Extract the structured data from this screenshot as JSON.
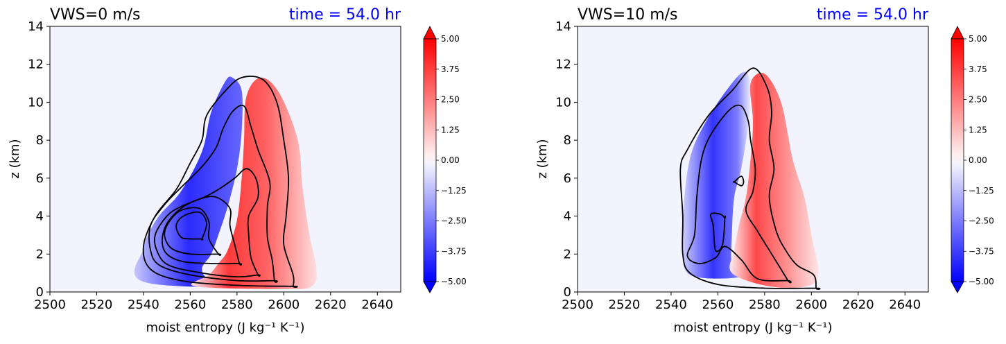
{
  "colors": {
    "title_right": "#0000ff",
    "plot_background": "#f3f3fd",
    "contour_line": "#000000",
    "colorbar_min": "#0000ff",
    "colorbar_max": "#ff0000"
  },
  "chart_data": [
    {
      "type": "heatmap",
      "title_left": "VWS=0 m/s",
      "title_right": "time = 54.0 hr",
      "xlabel": "moist entropy (J kg⁻¹ K⁻¹)",
      "ylabel": "z (km)",
      "xlim": [
        2500,
        2650
      ],
      "ylim": [
        0,
        14
      ],
      "xticks": [
        "2500",
        "2520",
        "2540",
        "2560",
        "2580",
        "2600",
        "2620",
        "2640"
      ],
      "yticks": [
        "0",
        "2",
        "4",
        "6",
        "8",
        "10",
        "12",
        "14"
      ],
      "colorbar": {
        "min": -5.0,
        "max": 5.0,
        "labels": [
          "5.00",
          "3.75",
          "2.50",
          "1.25",
          "0.00",
          "−1.25",
          "−2.50",
          "−3.75",
          "−5.00"
        ],
        "extend": "both"
      },
      "blue_region": [
        [
          2541,
          0.5
        ],
        [
          2540,
          2.3
        ],
        [
          2546,
          3.9
        ],
        [
          2556,
          5.3
        ],
        [
          2565,
          7.4
        ],
        [
          2569,
          9.5
        ],
        [
          2575,
          11.1
        ],
        [
          2578,
          11.3
        ],
        [
          2582,
          10.6
        ],
        [
          2582,
          8.5
        ],
        [
          2580,
          6.5
        ],
        [
          2576,
          4.5
        ],
        [
          2572,
          3.0
        ],
        [
          2569,
          2.0
        ],
        [
          2565,
          1.2
        ],
        [
          2570,
          0.6
        ],
        [
          2590,
          0.3
        ],
        [
          2600,
          0.25
        ]
      ],
      "red_region": [
        [
          2562,
          0.3
        ],
        [
          2568,
          0.9
        ],
        [
          2572,
          1.5
        ],
        [
          2576,
          2.2
        ],
        [
          2580,
          3.8
        ],
        [
          2582,
          6.0
        ],
        [
          2583,
          8.0
        ],
        [
          2584,
          10.3
        ],
        [
          2590,
          11.3
        ],
        [
          2598,
          10.5
        ],
        [
          2606,
          8.0
        ],
        [
          2608,
          5.5
        ],
        [
          2611,
          3.0
        ],
        [
          2614,
          1.2
        ],
        [
          2612,
          0.3
        ],
        [
          2600,
          0.15
        ]
      ],
      "contours": [
        [
          [
            2604,
            0.3
          ],
          [
            2604,
            0.9
          ],
          [
            2600,
            2.5
          ],
          [
            2601,
            4.0
          ],
          [
            2602,
            6.0
          ],
          [
            2600,
            8.0
          ],
          [
            2597,
            10.0
          ],
          [
            2591,
            11.2
          ],
          [
            2582,
            11.3
          ],
          [
            2575,
            10.6
          ],
          [
            2567,
            9.3
          ],
          [
            2565,
            8.0
          ],
          [
            2560,
            6.8
          ],
          [
            2554,
            5.4
          ],
          [
            2545,
            4.0
          ],
          [
            2540,
            2.4
          ],
          [
            2543,
            1.2
          ],
          [
            2556,
            0.6
          ],
          [
            2580,
            0.35
          ],
          [
            2604,
            0.3
          ]
        ],
        [
          [
            2596,
            0.6
          ],
          [
            2595,
            1.7
          ],
          [
            2593,
            2.9
          ],
          [
            2593,
            4.5
          ],
          [
            2594,
            5.8
          ],
          [
            2589,
            7.5
          ],
          [
            2586,
            8.7
          ],
          [
            2583,
            9.8
          ],
          [
            2578,
            9.5
          ],
          [
            2574,
            8.6
          ],
          [
            2571,
            7.6
          ],
          [
            2565,
            6.6
          ],
          [
            2556,
            5.5
          ],
          [
            2549,
            4.6
          ],
          [
            2543,
            3.5
          ],
          [
            2543,
            2.2
          ],
          [
            2547,
            1.4
          ],
          [
            2560,
            0.9
          ],
          [
            2580,
            0.6
          ],
          [
            2596,
            0.6
          ]
        ],
        [
          [
            2589,
            0.9
          ],
          [
            2586,
            1.8
          ],
          [
            2585,
            3.0
          ],
          [
            2585,
            4.0
          ],
          [
            2589,
            5.0
          ],
          [
            2588,
            6.0
          ],
          [
            2584,
            6.5
          ],
          [
            2579,
            6.0
          ],
          [
            2572,
            5.4
          ],
          [
            2566,
            5.0
          ],
          [
            2556,
            4.5
          ],
          [
            2550,
            4.0
          ],
          [
            2545,
            3.0
          ],
          [
            2546,
            2.1
          ],
          [
            2551,
            1.4
          ],
          [
            2565,
            1.0
          ],
          [
            2580,
            0.8
          ],
          [
            2589,
            0.9
          ]
        ],
        [
          [
            2581,
            1.5
          ],
          [
            2579,
            2.5
          ],
          [
            2577,
            3.5
          ],
          [
            2577,
            4.4
          ],
          [
            2571,
            5.0
          ],
          [
            2564,
            4.9
          ],
          [
            2556,
            4.4
          ],
          [
            2550,
            3.6
          ],
          [
            2548,
            2.7
          ],
          [
            2550,
            2.0
          ],
          [
            2557,
            1.6
          ],
          [
            2570,
            1.5
          ],
          [
            2581,
            1.5
          ]
        ],
        [
          [
            2572,
            2.0
          ],
          [
            2568,
            2.8
          ],
          [
            2568,
            3.7
          ],
          [
            2564,
            4.4
          ],
          [
            2556,
            4.3
          ],
          [
            2551,
            3.7
          ],
          [
            2549,
            3.0
          ],
          [
            2552,
            2.3
          ],
          [
            2560,
            2.0
          ],
          [
            2572,
            2.0
          ]
        ],
        [
          [
            2565,
            2.8
          ],
          [
            2567,
            3.6
          ],
          [
            2564,
            4.2
          ],
          [
            2557,
            4.0
          ],
          [
            2554,
            3.5
          ],
          [
            2556,
            2.9
          ],
          [
            2560,
            2.8
          ],
          [
            2565,
            2.8
          ]
        ]
      ]
    },
    {
      "type": "heatmap",
      "title_left": "VWS=10 m/s",
      "title_right": "time = 54.0 hr",
      "xlabel": "moist entropy (J kg⁻¹ K⁻¹)",
      "ylabel": "z (km)",
      "xlim": [
        2500,
        2650
      ],
      "ylim": [
        0,
        14
      ],
      "xticks": [
        "2500",
        "2520",
        "2540",
        "2560",
        "2580",
        "2600",
        "2620",
        "2640"
      ],
      "yticks": [
        "0",
        "2",
        "4",
        "6",
        "8",
        "10",
        "12",
        "14"
      ],
      "colorbar": {
        "min": -5.0,
        "max": 5.0,
        "labels": [
          "5.00",
          "3.75",
          "2.50",
          "1.25",
          "0.00",
          "−1.25",
          "−2.50",
          "−3.75",
          "−5.00"
        ],
        "extend": "both"
      },
      "blue_region": [
        [
          2548,
          0.9
        ],
        [
          2545,
          2.5
        ],
        [
          2545,
          4.0
        ],
        [
          2548,
          7.0
        ],
        [
          2555,
          9.0
        ],
        [
          2566,
          11.0
        ],
        [
          2572,
          11.6
        ],
        [
          2574,
          10.6
        ],
        [
          2573,
          8.8
        ],
        [
          2570,
          6.5
        ],
        [
          2567,
          5.0
        ],
        [
          2566,
          3.0
        ],
        [
          2566,
          1.5
        ],
        [
          2570,
          0.8
        ]
      ],
      "red_region": [
        [
          2566,
          1.0
        ],
        [
          2567,
          2.2
        ],
        [
          2569,
          3.5
        ],
        [
          2572,
          5.0
        ],
        [
          2574,
          7.0
        ],
        [
          2575,
          9.0
        ],
        [
          2574,
          11.0
        ],
        [
          2580,
          11.5
        ],
        [
          2587,
          10.0
        ],
        [
          2592,
          7.0
        ],
        [
          2597,
          5.0
        ],
        [
          2600,
          3.0
        ],
        [
          2603,
          1.0
        ],
        [
          2598,
          0.3
        ],
        [
          2582,
          0.3
        ]
      ],
      "contours": [
        [
          [
            2602,
            0.2
          ],
          [
            2601,
            0.9
          ],
          [
            2594,
            1.4
          ],
          [
            2589,
            2.2
          ],
          [
            2585,
            3.2
          ],
          [
            2582,
            5.0
          ],
          [
            2584,
            6.5
          ],
          [
            2582,
            8.0
          ],
          [
            2583,
            9.5
          ],
          [
            2581,
            10.8
          ],
          [
            2575,
            11.8
          ],
          [
            2566,
            10.6
          ],
          [
            2556,
            9.3
          ],
          [
            2547,
            7.5
          ],
          [
            2544,
            6.5
          ],
          [
            2545,
            4.0
          ],
          [
            2545,
            2.0
          ],
          [
            2548,
            1.0
          ],
          [
            2560,
            0.4
          ],
          [
            2580,
            0.2
          ],
          [
            2602,
            0.2
          ]
        ],
        [
          [
            2590,
            0.6
          ],
          [
            2577,
            0.7
          ],
          [
            2570,
            1.7
          ],
          [
            2563,
            2.4
          ],
          [
            2559,
            1.8
          ],
          [
            2552,
            1.5
          ],
          [
            2547,
            1.9
          ],
          [
            2550,
            3.0
          ],
          [
            2551,
            5.0
          ],
          [
            2553,
            7.0
          ],
          [
            2557,
            8.3
          ],
          [
            2565,
            9.6
          ],
          [
            2570,
            9.8
          ],
          [
            2573,
            9.0
          ],
          [
            2574,
            8.0
          ],
          [
            2576,
            6.5
          ],
          [
            2575,
            5.3
          ],
          [
            2572,
            4.3
          ],
          [
            2577,
            3.2
          ],
          [
            2583,
            2.0
          ],
          [
            2590,
            0.6
          ]
        ],
        [
          [
            2563,
            3.9
          ],
          [
            2562,
            2.5
          ],
          [
            2559,
            2.2
          ],
          [
            2558,
            3.5
          ],
          [
            2557,
            4.1
          ],
          [
            2561,
            4.1
          ],
          [
            2563,
            3.9
          ]
        ],
        [
          [
            2567,
            5.8
          ],
          [
            2570,
            6.1
          ],
          [
            2571,
            5.8
          ],
          [
            2570,
            5.6
          ],
          [
            2567,
            5.8
          ]
        ]
      ]
    }
  ]
}
